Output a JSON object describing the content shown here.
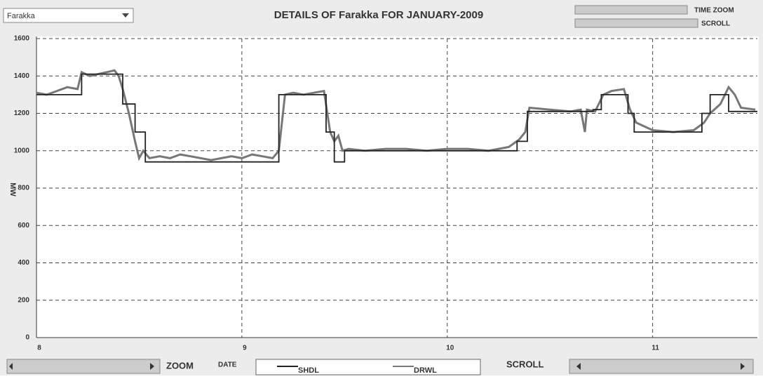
{
  "ui": {
    "station": "Farakka",
    "time_zoom": "TIME ZOOM",
    "scroll_top": "SCROLL",
    "zoom": "ZOOM",
    "date": "DATE",
    "scroll_bottom": "SCROLL"
  },
  "chart_data": {
    "type": "line",
    "title": "DETAILS OF Farakka FOR JANUARY-2009",
    "y_label": "MW",
    "xlim": [
      8,
      11.51
    ],
    "xticks": [
      8,
      9,
      10,
      11
    ],
    "ylim": [
      0,
      1600
    ],
    "yticks": [
      0,
      200,
      400,
      600,
      800,
      1000,
      1200,
      1400,
      1600
    ],
    "grid": true,
    "series": [
      {
        "name": "SHDL",
        "color": "#222222",
        "x": [
          8,
          8.22,
          8.22,
          8.42,
          8.42,
          8.48,
          8.48,
          8.53,
          8.53,
          9.18,
          9.18,
          9.41,
          9.41,
          9.45,
          9.45,
          9.5,
          9.5,
          10.34,
          10.34,
          10.39,
          10.39,
          10.71,
          10.71,
          10.75,
          10.75,
          10.88,
          10.88,
          10.91,
          10.91,
          11.24,
          11.24,
          11.28,
          11.28,
          11.37,
          11.37,
          11.51
        ],
        "values": [
          1300,
          1300,
          1410,
          1410,
          1250,
          1250,
          1100,
          1100,
          940,
          940,
          1300,
          1300,
          1100,
          1100,
          940,
          940,
          1000,
          1000,
          1050,
          1050,
          1210,
          1210,
          1220,
          1220,
          1300,
          1300,
          1200,
          1200,
          1100,
          1100,
          1200,
          1200,
          1300,
          1300,
          1210,
          1210
        ]
      },
      {
        "name": "DRWL",
        "color": "#777777",
        "x": [
          8,
          8.05,
          8.1,
          8.15,
          8.2,
          8.22,
          8.26,
          8.3,
          8.34,
          8.38,
          8.4,
          8.42,
          8.45,
          8.48,
          8.5,
          8.52,
          8.55,
          8.6,
          8.65,
          8.7,
          8.75,
          8.8,
          8.85,
          8.9,
          8.95,
          9,
          9.05,
          9.1,
          9.15,
          9.18,
          9.21,
          9.25,
          9.3,
          9.35,
          9.4,
          9.43,
          9.45,
          9.47,
          9.49,
          9.52,
          9.6,
          9.7,
          9.8,
          9.9,
          10,
          10.1,
          10.2,
          10.3,
          10.35,
          10.38,
          10.4,
          10.5,
          10.6,
          10.65,
          10.67,
          10.68,
          10.72,
          10.76,
          10.8,
          10.86,
          10.89,
          10.92,
          11,
          11.1,
          11.2,
          11.25,
          11.28,
          11.33,
          11.37,
          11.4,
          11.43,
          11.5
        ],
        "values": [
          1310,
          1300,
          1320,
          1340,
          1330,
          1420,
          1400,
          1410,
          1420,
          1430,
          1400,
          1330,
          1200,
          1050,
          960,
          1000,
          960,
          970,
          960,
          980,
          970,
          960,
          950,
          960,
          970,
          960,
          980,
          970,
          960,
          1000,
          1300,
          1310,
          1300,
          1310,
          1320,
          1100,
          1050,
          1080,
          1000,
          1010,
          1000,
          1010,
          1010,
          1000,
          1010,
          1010,
          1000,
          1020,
          1060,
          1100,
          1230,
          1220,
          1210,
          1220,
          1100,
          1220,
          1210,
          1300,
          1320,
          1330,
          1220,
          1150,
          1110,
          1100,
          1110,
          1150,
          1200,
          1250,
          1340,
          1300,
          1230,
          1220
        ]
      }
    ]
  }
}
